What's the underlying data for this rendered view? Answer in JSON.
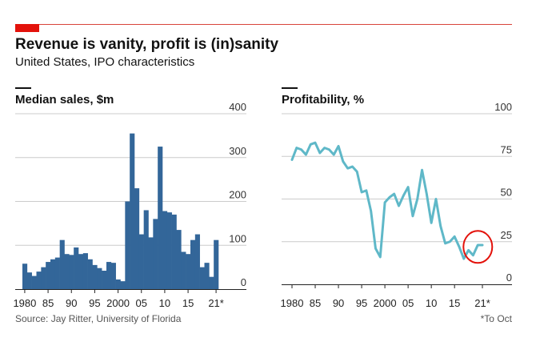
{
  "header": {
    "title": "Revenue is vanity, profit is (in)sanity",
    "subtitle": "United States, IPO characteristics"
  },
  "footer": {
    "source": "Source: Jay Ritter, University of Florida",
    "footnote": "*To Oct"
  },
  "colors": {
    "bar": "#336699",
    "line": "#5fb8c8",
    "accent": "#e3120b",
    "grid": "#cccccc"
  },
  "chart_data": [
    {
      "type": "bar",
      "title": "Median sales, $m",
      "x": [
        1980,
        1981,
        1982,
        1983,
        1984,
        1985,
        1986,
        1987,
        1988,
        1989,
        1990,
        1991,
        1992,
        1993,
        1994,
        1995,
        1996,
        1997,
        1998,
        1999,
        2000,
        2001,
        2002,
        2003,
        2004,
        2005,
        2006,
        2007,
        2008,
        2009,
        2010,
        2011,
        2012,
        2013,
        2014,
        2015,
        2016,
        2017,
        2018,
        2019,
        2020,
        2021
      ],
      "values": [
        58,
        38,
        30,
        40,
        50,
        62,
        68,
        72,
        112,
        80,
        78,
        95,
        80,
        82,
        68,
        55,
        48,
        42,
        62,
        60,
        22,
        18,
        200,
        355,
        230,
        125,
        180,
        118,
        160,
        325,
        178,
        175,
        170,
        135,
        85,
        80,
        112,
        125,
        50,
        60,
        28,
        112
      ],
      "ylim": [
        0,
        400
      ],
      "yticks": [
        0,
        100,
        200,
        300,
        400
      ],
      "xtick_labels": [
        "1980",
        "85",
        "90",
        "95",
        "2000",
        "05",
        "10",
        "15",
        "21*"
      ],
      "xtick_years": [
        1980,
        1985,
        1990,
        1995,
        2000,
        2005,
        2010,
        2015,
        2021
      ]
    },
    {
      "type": "line",
      "title": "Profitability, %",
      "x": [
        1980,
        1981,
        1982,
        1983,
        1984,
        1985,
        1986,
        1987,
        1988,
        1989,
        1990,
        1991,
        1992,
        1993,
        1994,
        1995,
        1996,
        1997,
        1998,
        1999,
        2000,
        2001,
        2002,
        2003,
        2004,
        2005,
        2006,
        2007,
        2008,
        2009,
        2010,
        2011,
        2012,
        2013,
        2014,
        2015,
        2016,
        2017,
        2018,
        2019,
        2020,
        2021
      ],
      "values": [
        73,
        80,
        79,
        76,
        82,
        83,
        77,
        80,
        79,
        76,
        81,
        72,
        68,
        69,
        66,
        54,
        55,
        43,
        21,
        16,
        48,
        51,
        53,
        46,
        52,
        57,
        40,
        50,
        67,
        53,
        36,
        50,
        34,
        24,
        25,
        28,
        22,
        15,
        20,
        17,
        23,
        23
      ],
      "ylim": [
        0,
        100
      ],
      "yticks": [
        0,
        25,
        50,
        75,
        100
      ],
      "xtick_labels": [
        "1980",
        "85",
        "90",
        "95",
        "2000",
        "05",
        "10",
        "15",
        "21*"
      ],
      "xtick_years": [
        1980,
        1985,
        1990,
        1995,
        2000,
        2005,
        2010,
        2015,
        2021
      ]
    }
  ]
}
